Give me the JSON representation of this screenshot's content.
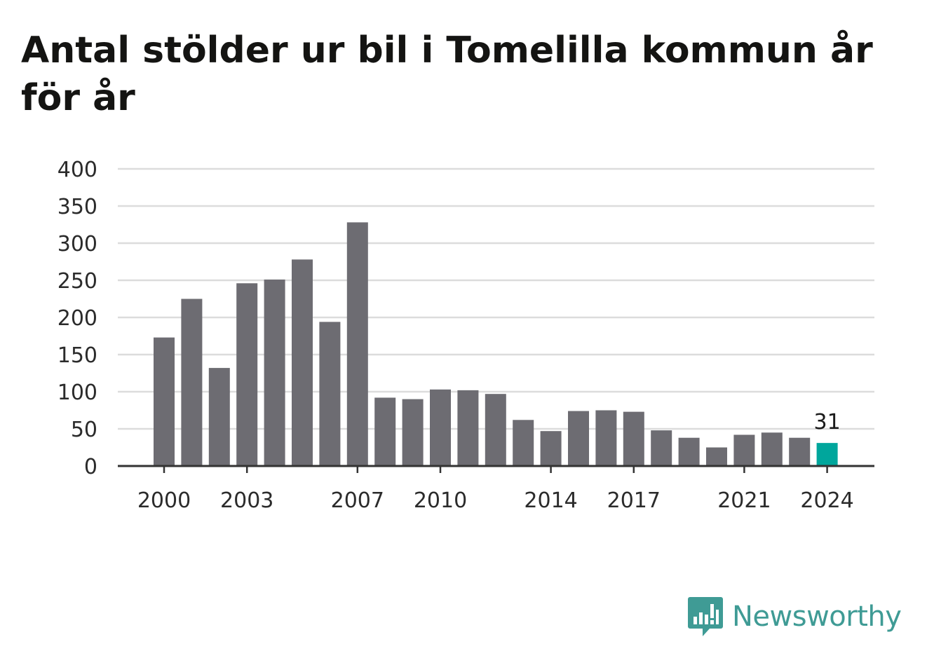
{
  "title": "Antal stölder ur bil i Tomelilla kommun år för år",
  "brand": {
    "name": "Newsworthy",
    "color": "#3f9b95",
    "icon": "bar-chart-speech-bubble-icon"
  },
  "colors": {
    "bar": "#6d6c72",
    "highlight": "#00a69c",
    "grid": "#dcdcdc",
    "axis": "#333333"
  },
  "chart_data": {
    "type": "bar",
    "title": "Antal stölder ur bil i Tomelilla kommun år för år",
    "xlabel": "",
    "ylabel": "",
    "ylim": [
      0,
      400
    ],
    "yticks": [
      0,
      50,
      100,
      150,
      200,
      250,
      300,
      350,
      400
    ],
    "grid": true,
    "categories": [
      "2000",
      "2001",
      "2002",
      "2003",
      "2004",
      "2005",
      "2006",
      "2007",
      "2008",
      "2009",
      "2010",
      "2011",
      "2012",
      "2013",
      "2014",
      "2015",
      "2016",
      "2017",
      "2018",
      "2019",
      "2020",
      "2021",
      "2022",
      "2023",
      "2024"
    ],
    "values": [
      173,
      225,
      132,
      246,
      251,
      278,
      194,
      328,
      92,
      90,
      103,
      102,
      97,
      62,
      47,
      74,
      75,
      73,
      48,
      38,
      25,
      42,
      45,
      38,
      31
    ],
    "xtick_labels": [
      "2000",
      "2003",
      "2007",
      "2010",
      "2014",
      "2017",
      "2021",
      "2024"
    ],
    "highlight": {
      "category": "2024",
      "label": "31"
    }
  }
}
